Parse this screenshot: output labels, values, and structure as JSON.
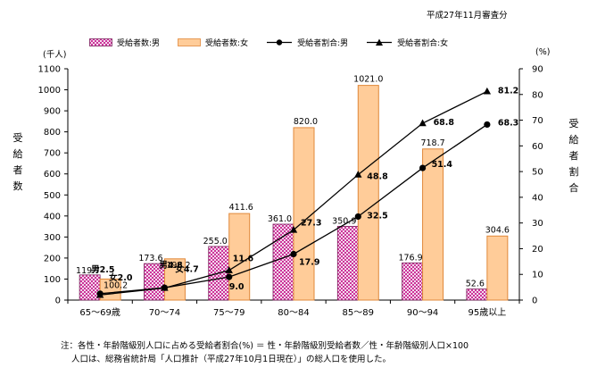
{
  "note_top": "平成27年11月審査分",
  "y_left_unit": "(千人)",
  "y_right_unit": "(%)",
  "y_left_title": "受給者数",
  "y_right_title": "受給者割合",
  "footnote_1": "注：各性・年齢階級別人口に占める受給者割合(%) ＝ 性・年齢階級別受給者数／性・年齢階級別人口×100",
  "footnote_2": "人口は、総務省統計局「人口推計（平成27年10月1日現在）」の総人口を使用した。",
  "colors": {
    "male_bar_fill": "#cc3399",
    "male_bar_pattern_bg": "#f2d9ec",
    "female_bar_fill": "#ffcc99",
    "female_bar_stroke": "#e0883a",
    "line": "#000000"
  },
  "chart_data": {
    "type": "bar",
    "categories": [
      "65～69歳",
      "70～74",
      "75～79",
      "80～84",
      "85～89",
      "90～94",
      "95歳以上"
    ],
    "ylim": [
      0,
      1100
    ],
    "y2lim": [
      0,
      90
    ],
    "yticks": [
      0,
      100,
      200,
      300,
      400,
      500,
      600,
      700,
      800,
      900,
      1000,
      1100
    ],
    "y2ticks": [
      0,
      10,
      20,
      30,
      40,
      50,
      60,
      70,
      80,
      90
    ],
    "grid": false,
    "legend_position": "top",
    "bar_series": [
      {
        "name": "受給者数:男",
        "values": [
          119.7,
          173.6,
          255.0,
          361.0,
          350.9,
          176.9,
          52.6
        ],
        "labels": [
          "119.7",
          "173.6",
          "255.0",
          "361.0",
          "350.9",
          "176.9",
          "52.6"
        ]
      },
      {
        "name": "受給者数:女",
        "values": [
          100.2,
          196.2,
          411.6,
          820.0,
          1021.0,
          718.7,
          304.6
        ],
        "labels": [
          "100.2",
          "196.2",
          "411.6",
          "820.0",
          "1021.0",
          "718.7",
          "304.6"
        ]
      }
    ],
    "line_series": [
      {
        "name": "受給者割合:男",
        "marker": "circle",
        "values": [
          2.5,
          4.8,
          9.0,
          17.9,
          32.5,
          51.4,
          68.3
        ],
        "labels": [
          "男2.5",
          "男4.8",
          "9.0",
          "17.9",
          "32.5",
          "51.4",
          "68.3"
        ]
      },
      {
        "name": "受給者割合:女",
        "marker": "triangle",
        "values": [
          2.0,
          4.7,
          11.6,
          27.3,
          48.8,
          68.8,
          81.2
        ],
        "labels": [
          "女2.0",
          "女4.7",
          "11.6",
          "27.3",
          "48.8",
          "68.8",
          "81.2"
        ]
      }
    ]
  }
}
